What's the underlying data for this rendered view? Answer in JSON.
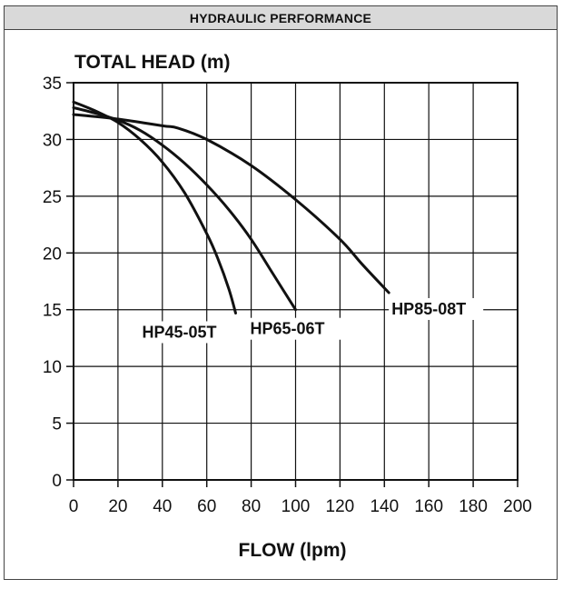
{
  "header": {
    "title": "HYDRAULIC PERFORMANCE"
  },
  "chart_data": {
    "type": "line",
    "ylabel": "TOTAL HEAD (m)",
    "xlabel": "FLOW (lpm)",
    "xlim": [
      0,
      200
    ],
    "ylim": [
      0,
      35
    ],
    "xticks": [
      0,
      20,
      40,
      60,
      80,
      100,
      120,
      140,
      160,
      180,
      200
    ],
    "yticks": [
      0,
      5,
      10,
      15,
      20,
      25,
      30,
      35
    ],
    "grid": true,
    "series": [
      {
        "name": "HP45-05T",
        "x": [
          0,
          10,
          20,
          30,
          40,
          50,
          60,
          65,
          70,
          73
        ],
        "y": [
          33.3,
          32.5,
          31.5,
          30.0,
          28.0,
          25.3,
          21.7,
          19.5,
          16.8,
          14.7
        ]
      },
      {
        "name": "HP65-06T",
        "x": [
          0,
          10,
          20,
          30,
          40,
          50,
          60,
          70,
          80,
          90,
          100
        ],
        "y": [
          32.8,
          32.3,
          31.7,
          30.8,
          29.5,
          27.9,
          26.0,
          23.8,
          21.2,
          18.1,
          15.0
        ]
      },
      {
        "name": "HP85-08T",
        "x": [
          0,
          20,
          40,
          47,
          60,
          80,
          100,
          120,
          130,
          142
        ],
        "y": [
          32.2,
          31.8,
          31.2,
          31.0,
          30.0,
          27.7,
          24.7,
          21.2,
          19.0,
          16.5
        ]
      }
    ]
  }
}
